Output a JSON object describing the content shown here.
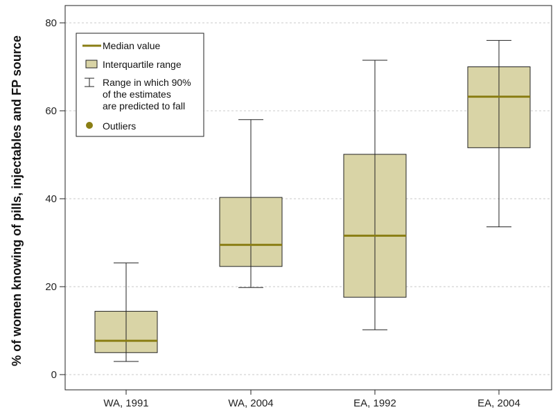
{
  "chart_data": {
    "type": "boxplot",
    "title": "",
    "xlabel": "",
    "ylabel": "% of women knowing of pills, injectables and FP source",
    "ylim": [
      0,
      80
    ],
    "yticks": [
      0,
      20,
      40,
      60,
      80
    ],
    "grid": "horizontal dashed",
    "colors": {
      "box_fill": "#d9d4a6",
      "median": "#8a7e14",
      "outline": "#222222",
      "grid": "#c8c8c8"
    },
    "categories": [
      "WA, 1991",
      "WA, 2004",
      "EA, 1992",
      "EA, 2004"
    ],
    "boxes": [
      {
        "whisker_low": 3,
        "q1": 5,
        "median": 7.7,
        "q3": 14.4,
        "whisker_high": 25.4
      },
      {
        "whisker_low": 19.8,
        "q1": 24.6,
        "median": 29.5,
        "q3": 40.3,
        "whisker_high": 58
      },
      {
        "whisker_low": 10.2,
        "q1": 17.6,
        "median": 31.6,
        "q3": 50.1,
        "whisker_high": 71.5
      },
      {
        "whisker_low": 33.6,
        "q1": 51.6,
        "median": 63.2,
        "q3": 70,
        "whisker_high": 76
      }
    ],
    "legend": {
      "position": "top-left",
      "entries": [
        {
          "icon": "median-line-icon",
          "label": "Median value"
        },
        {
          "icon": "box-swatch-icon",
          "label": "Interquartile range"
        },
        {
          "icon": "whisker-icon",
          "lines": [
            "Range in which 90%",
            "of the estimates",
            "are predicted to fall"
          ]
        },
        {
          "icon": "outlier-dot-icon",
          "label": "Outliers"
        }
      ]
    }
  }
}
